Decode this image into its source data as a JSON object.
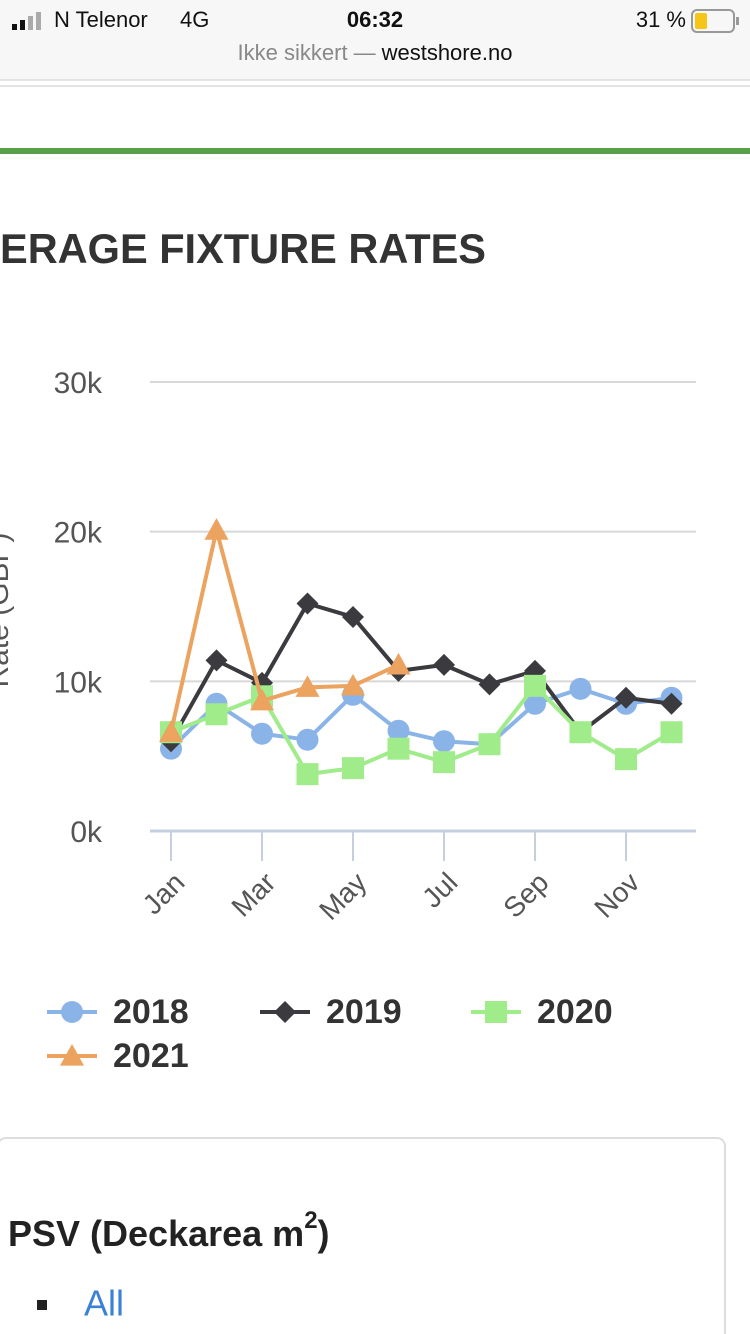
{
  "status_bar": {
    "carrier": "N Telenor",
    "network": "4G",
    "time": "06:32",
    "battery": "31 %"
  },
  "address_bar": {
    "security": "Ikke sikkert",
    "separator": "—",
    "domain": "westshore.no"
  },
  "chart_data": {
    "type": "line",
    "title": "ERAGE FIXTURE RATES",
    "y_label": "Rate (GBP)",
    "categories": [
      "Jan",
      null,
      "Mar",
      null,
      "May",
      null,
      "Jul",
      null,
      "Sep",
      null,
      "Nov",
      null
    ],
    "ylim": [
      0,
      30000
    ],
    "yticks": [
      {
        "value": 0,
        "label": "0k"
      },
      {
        "value": 10000,
        "label": "10k"
      },
      {
        "value": 20000,
        "label": "20k"
      },
      {
        "value": 30000,
        "label": "30k"
      }
    ],
    "grid": true,
    "series": [
      {
        "name": "2018",
        "color": "#8ab4e8",
        "marker": "circle",
        "values": [
          5500,
          8500,
          6500,
          6100,
          9100,
          6700,
          6000,
          5800,
          8500,
          9500,
          8500,
          8900
        ]
      },
      {
        "name": "2019",
        "color": "#3a3a3f",
        "marker": "diamond",
        "values": [
          6000,
          11400,
          9900,
          15200,
          14300,
          10700,
          11100,
          9800,
          10700,
          6600,
          8900,
          8500
        ]
      },
      {
        "name": "2020",
        "color": "#a0eb8a",
        "marker": "square",
        "values": [
          6600,
          7800,
          9000,
          3800,
          4200,
          5500,
          4600,
          5800,
          9700,
          6600,
          4800,
          6600
        ]
      },
      {
        "name": "2021",
        "color": "#eba35f",
        "marker": "triangle",
        "values": [
          6600,
          20100,
          8700,
          9600,
          9700,
          11100,
          null,
          null,
          null,
          null,
          null,
          null
        ]
      }
    ]
  },
  "card": {
    "heading": "PSV (Deckarea m",
    "heading_sup": "2",
    "heading_end": ")",
    "items": [
      "All"
    ]
  }
}
